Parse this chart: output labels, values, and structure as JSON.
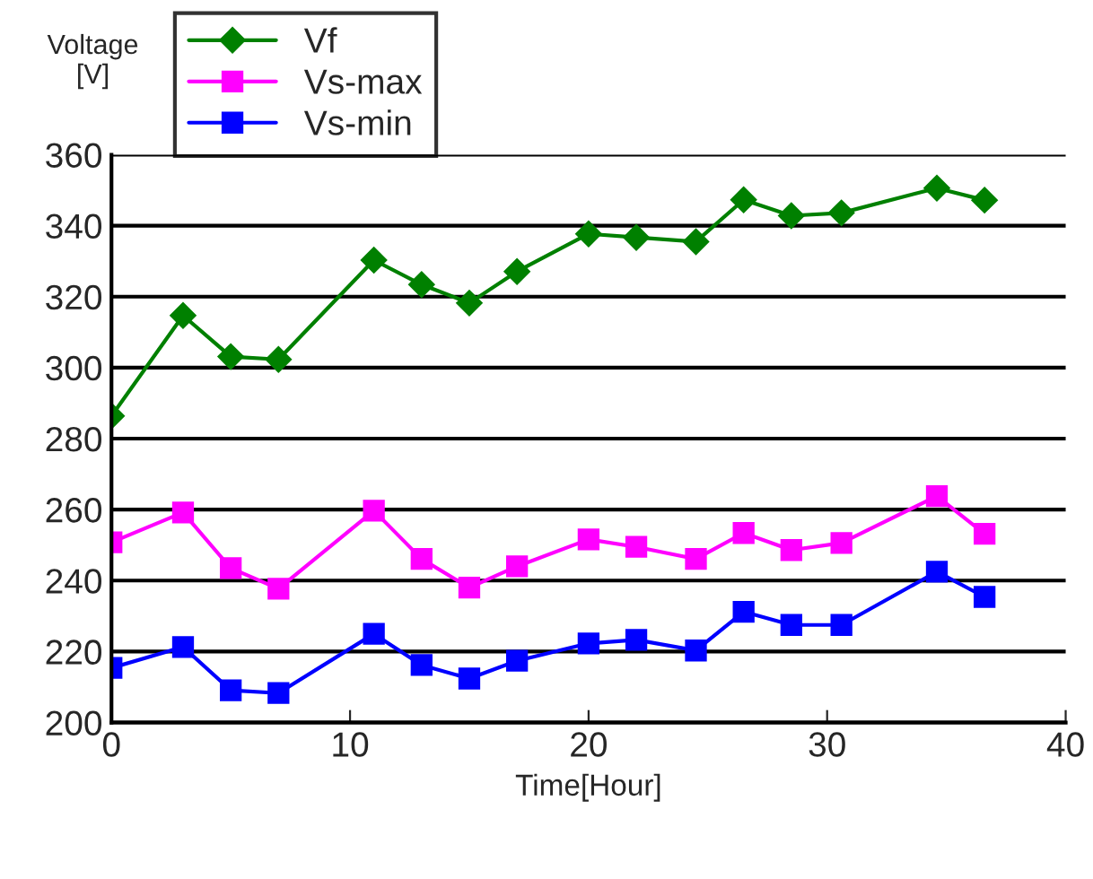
{
  "chart_data": {
    "type": "line",
    "xlabel": "Time[Hour]",
    "ylabel": "Voltage\n[V]",
    "x": [
      0,
      3,
      5,
      7,
      11,
      13,
      15,
      17,
      20,
      22,
      24.5,
      26.5,
      28.5,
      30.6,
      34.6,
      36.6
    ],
    "series": [
      {
        "name": "Vf",
        "color": "#008000",
        "marker": "diamond",
        "values": [
          286.4,
          314.7,
          303.1,
          302.3,
          330.3,
          323.4,
          318.2,
          327.1,
          337.7,
          336.7,
          335.5,
          347.3,
          342.8,
          343.6,
          350.6,
          347.2
        ]
      },
      {
        "name": "Vs-max",
        "color": "#ff00ff",
        "marker": "square",
        "values": [
          250.8,
          259.2,
          243.5,
          237.7,
          259.7,
          246.1,
          238,
          244,
          251.6,
          249.5,
          246.1,
          253.4,
          248.6,
          250.6,
          263.8,
          253.2
        ]
      },
      {
        "name": "Vs-min",
        "color": "#0000ff",
        "marker": "square",
        "values": [
          215.4,
          221.3,
          209.1,
          208.3,
          225,
          216.2,
          212.4,
          217.4,
          222.3,
          223.3,
          220.3,
          231.2,
          227.5,
          227.5,
          242.5,
          235.4
        ]
      }
    ],
    "xlim": [
      0,
      40
    ],
    "xticks": [
      0,
      10,
      20,
      30,
      40
    ],
    "ylim": [
      200,
      360
    ],
    "yticks": [
      200,
      220,
      240,
      260,
      280,
      300,
      320,
      340,
      360
    ],
    "grid": "y",
    "legend": "top left"
  }
}
